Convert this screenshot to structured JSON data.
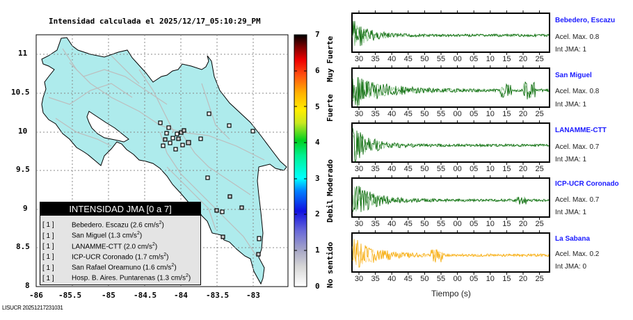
{
  "title": "Intensidad calculada el 2025/12/17_05:10:29_PM",
  "map": {
    "y_ticks": [
      "11",
      "10.5",
      "10",
      "9.5",
      "9",
      "8.5",
      "8"
    ],
    "x_ticks": [
      "-86",
      "-85.5",
      "-85",
      "-84.5",
      "-84",
      "-83.5",
      "-83"
    ],
    "land_color": "#aeebec",
    "road_color": "#bdbdbd"
  },
  "legend": {
    "header": "INTENSIDAD JMA [0 a 7]",
    "rows": [
      {
        "bracket": "[ 1 ]",
        "text": "Bebedero. Escazu (2.6 cm/s",
        "sup": "2",
        "end": ")"
      },
      {
        "bracket": "[ 1 ]",
        "text": "San Miguel (1.3 cm/s",
        "sup": "2",
        "end": ")"
      },
      {
        "bracket": "[ 1 ]",
        "text": "LANAMME-CTT (2.0 cm/s",
        "sup": "2",
        "end": ")"
      },
      {
        "bracket": "[ 1 ]",
        "text": "ICP-UCR Coronado (1.7 cm/s",
        "sup": "2",
        "end": ")"
      },
      {
        "bracket": "[ 1 ]",
        "text": "San Rafael Oreamuno (1.6 cm/s",
        "sup": "2",
        "end": ")"
      },
      {
        "bracket": "[ 1 ]",
        "text": "Hosp. B. Aires. Puntarenas (1.3 cm/s",
        "sup": "2",
        "end": ")"
      }
    ]
  },
  "colorbar": {
    "ticks": [
      "7",
      "6",
      "5",
      "4",
      "3",
      "2",
      "1",
      "0"
    ],
    "labels": [
      "Muy Fuerte",
      "Fuerte",
      "Moderado",
      "Debil",
      "No sentido"
    ]
  },
  "footer": "LISUCR 20251217231031",
  "panels": [
    {
      "name": "Bebedero, Escazu",
      "acel": "Acel. Max. 0.8",
      "int": "Int JMA: 1",
      "color": "#006400"
    },
    {
      "name": "San Miguel",
      "acel": "Acel. Max. 0.8",
      "int": "Int JMA: 1",
      "color": "#006400"
    },
    {
      "name": "LANAMME-CTT",
      "acel": "Acel. Max. 0.7",
      "int": "Int JMA: 1",
      "color": "#006400"
    },
    {
      "name": "ICP-UCR Coronado",
      "acel": "Acel. Max. 0.7",
      "int": "Int JMA: 1",
      "color": "#006400"
    },
    {
      "name": "La Sabana",
      "acel": "Acel. Max. 0.2",
      "int": "Int JMA: 0",
      "color": "#f5a800"
    }
  ],
  "time_ticks": [
    "30",
    "35",
    "40",
    "45",
    "50",
    "55",
    "00",
    "05",
    "10",
    "15",
    "20",
    "25"
  ],
  "time_axis_label": "Tiempo (s)"
}
